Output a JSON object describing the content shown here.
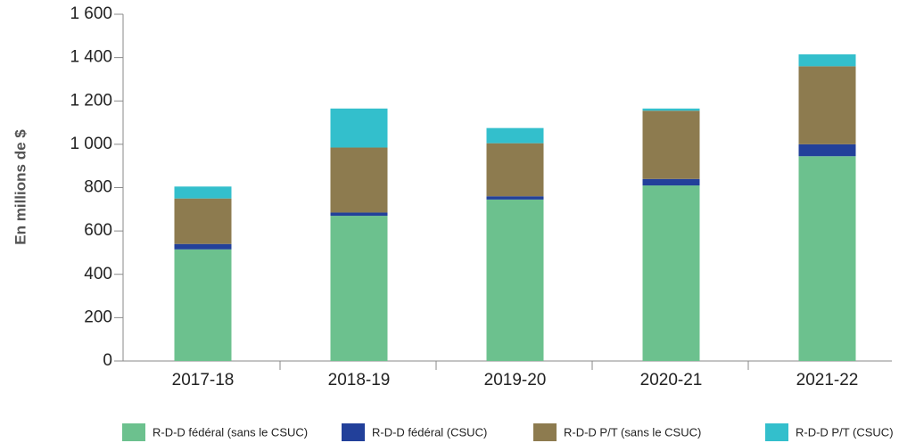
{
  "chart_data": {
    "type": "stacked_bar",
    "y_label": "En millions de $",
    "categories": [
      "2017-18",
      "2018-19",
      "2019-20",
      "2020-21",
      "2021-22"
    ],
    "series": [
      {
        "name": "R-D-D fédéral (sans le CSUC)",
        "color": "#6cc18e",
        "values": [
          515,
          670,
          745,
          810,
          945
        ]
      },
      {
        "name": "R-D-D fédéral (CSUC)",
        "color": "#22409a",
        "values": [
          25,
          15,
          15,
          30,
          55
        ]
      },
      {
        "name": "R-D-D P/T (sans le CSUC)",
        "color": "#8d7b4f",
        "values": [
          210,
          300,
          245,
          315,
          360
        ]
      },
      {
        "name": "R-D-D P/T (CSUC)",
        "color": "#33bfcc",
        "values": [
          55,
          180,
          70,
          10,
          55
        ]
      }
    ],
    "ylim": [
      0,
      1600
    ],
    "yticks": [
      0,
      200,
      400,
      600,
      800,
      {
        "value": 1000,
        "label": "1 000"
      },
      {
        "value": 1200,
        "label": "1 200"
      },
      {
        "value": 1400,
        "label": "1 400"
      },
      {
        "value": 1600,
        "label": "1 600"
      }
    ]
  }
}
